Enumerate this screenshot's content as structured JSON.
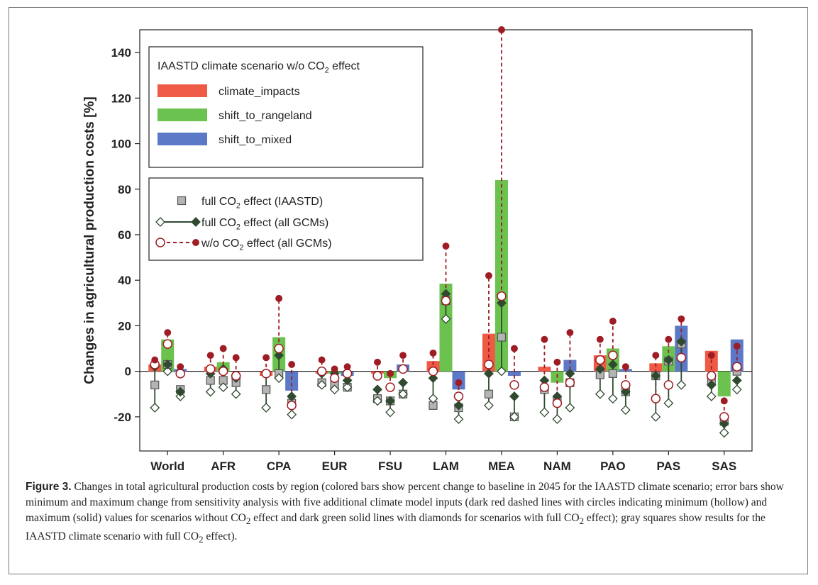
{
  "chart_data": {
    "type": "bar",
    "ylabel": "Changes in agricultural production costs [%]",
    "ylim": [
      -35,
      150
    ],
    "yticks": [
      -20,
      0,
      20,
      40,
      60,
      80,
      100,
      120,
      140
    ],
    "categories": [
      "World",
      "AFR",
      "CPA",
      "EUR",
      "FSU",
      "LAM",
      "MEA",
      "NAM",
      "PAO",
      "PAS",
      "SAS"
    ],
    "legend_bars": {
      "title_prefix": "IAASTD climate scenario w/o CO",
      "title_sub": "2",
      "title_suffix": " effect"
    },
    "series": [
      {
        "name": "climate_impacts",
        "color": "#ee5a45",
        "values": [
          3,
          2,
          -2,
          -1,
          -1,
          4.5,
          16.5,
          2,
          7,
          3.5,
          9
        ],
        "full_co2_iaastd": [
          -6,
          -4,
          -8,
          -5,
          -12,
          -15,
          -10,
          -8,
          -1.5,
          -2,
          -4
        ],
        "full_co2_gcm": [
          [
            -16,
            2
          ],
          [
            -9,
            -1
          ],
          [
            -16,
            -1
          ],
          [
            -6,
            -1
          ],
          [
            -13,
            -8
          ],
          [
            -12,
            -3
          ],
          [
            -15,
            -1
          ],
          [
            -18,
            -4
          ],
          [
            -10,
            1
          ],
          [
            -20,
            -2
          ],
          [
            -11,
            -6
          ]
        ],
        "wo_co2_gcm": [
          [
            3,
            5
          ],
          [
            1,
            7
          ],
          [
            -1,
            6
          ],
          [
            0,
            5
          ],
          [
            -2,
            4
          ],
          [
            0,
            8
          ],
          [
            3,
            42
          ],
          [
            -7,
            14
          ],
          [
            5,
            14
          ],
          [
            -12,
            7
          ],
          [
            -2,
            7
          ]
        ]
      },
      {
        "name": "shift_to_rangeland",
        "color": "#6cc24e",
        "values": [
          14,
          4,
          15,
          -1,
          -3,
          38.5,
          84,
          -5,
          10,
          11,
          -11
        ],
        "full_co2_iaastd": [
          3,
          -4,
          -1,
          -6,
          -13,
          31,
          15,
          -13,
          -1,
          4.5,
          -22
        ],
        "full_co2_gcm": [
          [
            0,
            3
          ],
          [
            -7,
            1
          ],
          [
            -3,
            7
          ],
          [
            -8,
            -1
          ],
          [
            -18,
            -13
          ],
          [
            23,
            34
          ],
          [
            0,
            30
          ],
          [
            -21,
            -11
          ],
          [
            -12,
            3
          ],
          [
            -14,
            5
          ],
          [
            -27,
            -23
          ]
        ],
        "wo_co2_gcm": [
          [
            12,
            17
          ],
          [
            0,
            10
          ],
          [
            10,
            32
          ],
          [
            -3,
            1
          ],
          [
            -7,
            -1
          ],
          [
            31,
            55
          ],
          [
            33,
            150
          ],
          [
            -14,
            4
          ],
          [
            7,
            22
          ],
          [
            -6,
            14
          ],
          [
            -20,
            -13
          ]
        ]
      },
      {
        "name": "shift_to_mixed",
        "color": "#5c79c8",
        "values": [
          1,
          0,
          -8.5,
          -2,
          3,
          -8,
          -2,
          5,
          1,
          20,
          14
        ],
        "full_co2_iaastd": [
          -8,
          -5,
          -14,
          -7,
          -10,
          -16,
          -20,
          -5,
          -9,
          12,
          0
        ],
        "full_co2_gcm": [
          [
            -11,
            -9
          ],
          [
            -10,
            -3
          ],
          [
            -19,
            -11
          ],
          [
            -7,
            -4
          ],
          [
            -10,
            -5
          ],
          [
            -21,
            -15
          ],
          [
            -20,
            -11
          ],
          [
            -16,
            -1
          ],
          [
            -17,
            -9
          ],
          [
            -6,
            13
          ],
          [
            -8,
            -4
          ]
        ],
        "wo_co2_gcm": [
          [
            -1,
            2
          ],
          [
            -2,
            6
          ],
          [
            -15,
            3
          ],
          [
            -1,
            2
          ],
          [
            1,
            7
          ],
          [
            -11,
            -5
          ],
          [
            -6,
            10
          ],
          [
            -5,
            17
          ],
          [
            -6,
            2
          ],
          [
            6,
            23
          ],
          [
            2,
            11
          ]
        ]
      }
    ],
    "legend_markers": [
      {
        "prefix": "full CO",
        "sub": "2",
        "suffix": " effect (IAASTD)"
      },
      {
        "prefix": "full CO",
        "sub": "2",
        "suffix": " effect (all GCMs)"
      },
      {
        "prefix": "w/o CO",
        "sub": "2",
        "suffix": " effect (all GCMs)"
      }
    ],
    "marker_colors": {
      "square_fill": "#b4b4b4",
      "square_stroke": "#555555",
      "diamond": "#2f4a2f",
      "circle": "#9e1c24"
    }
  },
  "caption": {
    "label": "Figure 3.",
    "part1": " Changes in total agricultural production costs by region (colored bars show percent change to baseline in 2045 for the IAASTD climate scenario; error bars show minimum and maximum change from sensitivity analysis with five additional climate model inputs (dark red dashed lines with circles indicating minimum (hollow) and maximum (solid) values for scenarios without CO",
    "sub1": "2",
    "part2": " effect and dark green solid lines with diamonds for scenarios with full CO",
    "sub2": "2",
    "part3": " effect); gray squares show results for the IAASTD climate scenario with full CO",
    "sub3": "2",
    "part4": " effect)."
  }
}
